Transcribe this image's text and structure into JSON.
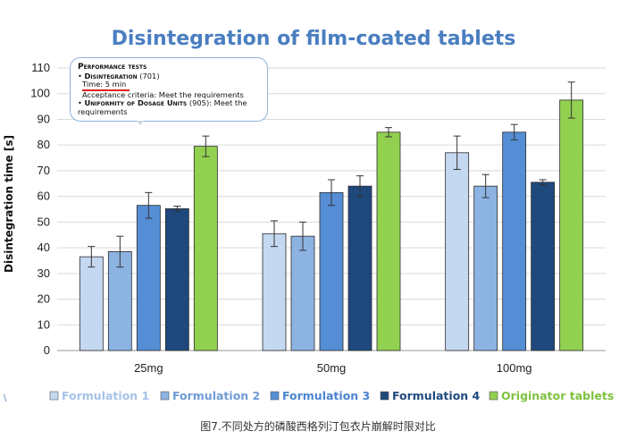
{
  "chart_data": {
    "type": "bar",
    "title": "Disintegration of film-coated tablets",
    "ylabel": "Disintegration time [s]",
    "xlabel": "",
    "ylim": [
      0,
      110
    ],
    "ytick_step": 10,
    "grid": true,
    "legend_position": "bottom",
    "categories": [
      "25mg",
      "50mg",
      "100mg"
    ],
    "series": [
      {
        "name": "Formulation 1",
        "color": "#c5d8f1",
        "values": [
          36.5,
          45.5,
          77
        ],
        "errors": [
          4,
          5,
          6.5
        ]
      },
      {
        "name": "Formulation 2",
        "color": "#8db3e2",
        "values": [
          38.5,
          44.5,
          64
        ],
        "errors": [
          6,
          5.5,
          4.5
        ]
      },
      {
        "name": "Formulation 3",
        "color": "#558ed5",
        "values": [
          56.5,
          61.5,
          85
        ],
        "errors": [
          5,
          5,
          3
        ]
      },
      {
        "name": "Formulation 4",
        "color": "#1f497d",
        "values": [
          55.2,
          64,
          65.5
        ],
        "errors": [
          1,
          4,
          1
        ]
      },
      {
        "name": "Originator tablets",
        "color": "#92d050",
        "values": [
          79.5,
          85,
          97.5
        ],
        "errors": [
          4,
          1.8,
          7
        ]
      }
    ],
    "legend_text_colors": [
      "#a6c2e8",
      "#6f9bd6",
      "#4a84cf",
      "#1f497d",
      "#7dc13e"
    ]
  },
  "callout": {
    "heading": "Performance tests",
    "line1_bold": "Disintegration",
    "line1_rest": " (701)",
    "line2": "Time:  5 min",
    "line3": "Acceptance criteria:  Meet the requirements",
    "line4_bold": "Uniformity of Dosage Units",
    "line4_rest": " (905):  Meet the requirements",
    "bullet": "•"
  },
  "caption": "图7.不同处方的磷酸西格列汀包衣片崩解时限对比",
  "corner_mark": "\\"
}
